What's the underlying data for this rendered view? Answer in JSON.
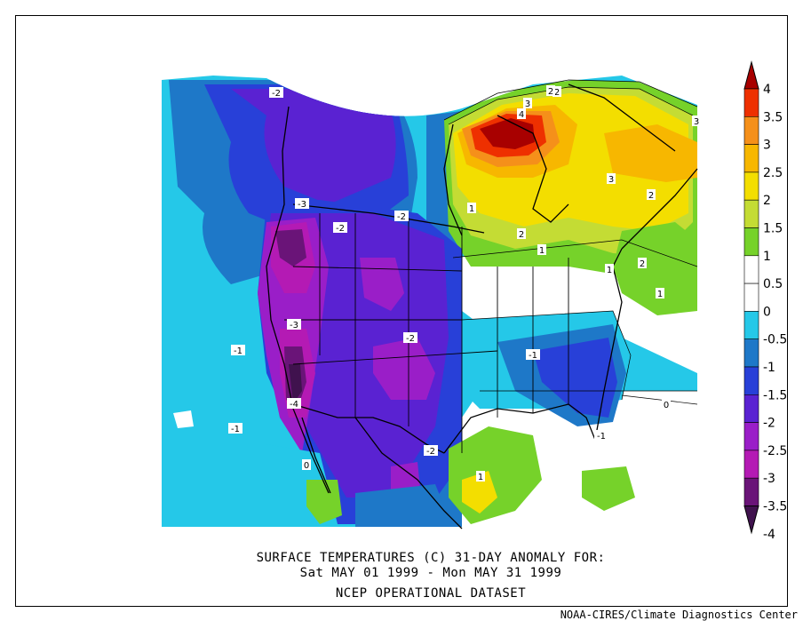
{
  "caption": {
    "line1": "SURFACE TEMPERATURES (C)   31-DAY ANOMALY FOR:",
    "line2": "Sat MAY 01 1999 - Mon MAY 31 1999",
    "line3": "NCEP OPERATIONAL DATASET"
  },
  "credit": "NOAA-CIRES/Climate Diagnostics Center",
  "colorbar": {
    "levels": [
      {
        "label": "4",
        "color": "#a80000"
      },
      {
        "label": "3.5",
        "color": "#ee3000"
      },
      {
        "label": "3",
        "color": "#f5901a"
      },
      {
        "label": "2.5",
        "color": "#f7b700"
      },
      {
        "label": "2",
        "color": "#f3de00"
      },
      {
        "label": "1.5",
        "color": "#c4dc34"
      },
      {
        "label": "1",
        "color": "#76d22a"
      },
      {
        "label": "0.5",
        "color": "#ffffff"
      },
      {
        "label": "0",
        "color": "#ffffff"
      },
      {
        "label": "-0.5",
        "color": "#25c8e8"
      },
      {
        "label": "-1",
        "color": "#1e78c8"
      },
      {
        "label": "-1.5",
        "color": "#2840d8"
      },
      {
        "label": "-2",
        "color": "#5a22d2"
      },
      {
        "label": "-2.5",
        "color": "#9a1ec8"
      },
      {
        "label": "-3",
        "color": "#b41ab4"
      },
      {
        "label": "-3.5",
        "color": "#6a1478"
      },
      {
        "label": "-4",
        "color": "#40124e"
      }
    ]
  },
  "contour_labels": [
    "-2",
    "-3",
    "-2",
    "-2",
    "-3",
    "-2",
    "-1",
    "-4",
    "-1",
    "-2",
    "-1",
    "-1",
    "1",
    "4",
    "3",
    "2",
    "3",
    "3",
    "2",
    "2",
    "1",
    "2",
    "1",
    "1",
    "2",
    "1",
    "0",
    "0"
  ]
}
